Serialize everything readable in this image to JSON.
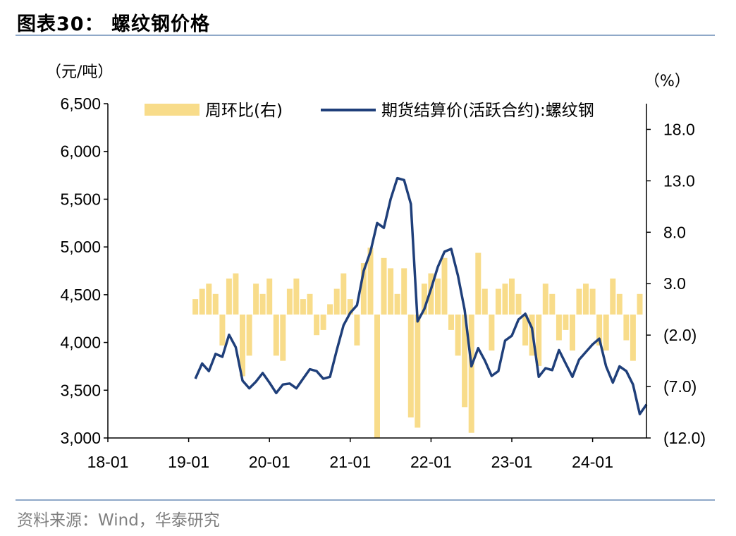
{
  "header": {
    "title": "图表30：  螺纹钢价格"
  },
  "footer": {
    "source": "资料来源：Wind，华泰研究"
  },
  "colors": {
    "rule": "#8fa8c8",
    "line": "#1f3f7a",
    "bar": "#f8dc8a",
    "source": "#7f7f7f"
  },
  "chart_data": {
    "type": "line",
    "title": "",
    "y_left_unit": "（元/吨）",
    "y_right_unit": "（%）",
    "ylim_left": [
      3000,
      6500
    ],
    "ylim_right": [
      -12.0,
      20.5
    ],
    "y_left_ticks": [
      "3,000",
      "3,500",
      "4,000",
      "4,500",
      "5,000",
      "5,500",
      "6,000",
      "6,500"
    ],
    "y_right_ticks": [
      "(12.0)",
      "(7.0)",
      "(2.0)",
      "3.0",
      "8.0",
      "13.0",
      "18.0"
    ],
    "x_ticks": [
      "18-01",
      "19-01",
      "20-01",
      "21-01",
      "22-01",
      "23-01",
      "24-01"
    ],
    "xlim": [
      "2018-01",
      "2024-09"
    ],
    "legend_position": "top",
    "series": [
      {
        "name": "周环比(右)",
        "kind": "bar",
        "color": "#f8dc8a",
        "axis": "right",
        "x": [
          "2019-02",
          "2019-03",
          "2019-04",
          "2019-05",
          "2019-06",
          "2019-07",
          "2019-08",
          "2019-09",
          "2019-10",
          "2019-11",
          "2019-12",
          "2020-01",
          "2020-02",
          "2020-03",
          "2020-04",
          "2020-05",
          "2020-06",
          "2020-07",
          "2020-08",
          "2020-09",
          "2020-10",
          "2020-11",
          "2020-12",
          "2021-01",
          "2021-02",
          "2021-03",
          "2021-04",
          "2021-05",
          "2021-06",
          "2021-07",
          "2021-08",
          "2021-09",
          "2021-10",
          "2021-11",
          "2021-12",
          "2022-01",
          "2022-02",
          "2022-03",
          "2022-04",
          "2022-05",
          "2022-06",
          "2022-07",
          "2022-08",
          "2022-09",
          "2022-10",
          "2022-11",
          "2022-12",
          "2023-01",
          "2023-02",
          "2023-03",
          "2023-04",
          "2023-05",
          "2023-06",
          "2023-07",
          "2023-08",
          "2023-09",
          "2023-10",
          "2023-11",
          "2023-12",
          "2024-01",
          "2024-02",
          "2024-03",
          "2024-04",
          "2024-05",
          "2024-06",
          "2024-07",
          "2024-08"
        ],
        "values": [
          1.5,
          2.5,
          3.0,
          2.0,
          -3.0,
          3.5,
          4.0,
          -6.0,
          -4.0,
          3.0,
          2.0,
          3.5,
          -4.0,
          -4.5,
          2.5,
          3.5,
          1.5,
          2.0,
          -2.0,
          -1.5,
          1.0,
          2.5,
          4.0,
          1.5,
          -3.0,
          5.0,
          6.5,
          -12.0,
          5.5,
          4.5,
          2.0,
          4.5,
          -10.0,
          -11.0,
          3.0,
          4.0,
          3.5,
          5.5,
          -1.5,
          -4.0,
          -9.0,
          -11.5,
          6.0,
          2.5,
          -3.5,
          2.5,
          3.0,
          3.5,
          2.0,
          -3.0,
          -4.0,
          -5.0,
          3.0,
          2.0,
          -2.5,
          -1.5,
          -3.5,
          2.5,
          3.0,
          2.5,
          -3.0,
          -3.5,
          3.5,
          2.0,
          -2.5,
          -4.5,
          2.0
        ]
      },
      {
        "name": "期货结算价(活跃合约):螺纹钢",
        "kind": "line",
        "color": "#1f3f7a",
        "axis": "left",
        "x": [
          "2019-02",
          "2019-03",
          "2019-04",
          "2019-05",
          "2019-06",
          "2019-07",
          "2019-08",
          "2019-09",
          "2019-10",
          "2019-11",
          "2019-12",
          "2020-01",
          "2020-02",
          "2020-03",
          "2020-04",
          "2020-05",
          "2020-06",
          "2020-07",
          "2020-08",
          "2020-09",
          "2020-10",
          "2020-11",
          "2020-12",
          "2021-01",
          "2021-02",
          "2021-03",
          "2021-04",
          "2021-05",
          "2021-06",
          "2021-07",
          "2021-08",
          "2021-09",
          "2021-10",
          "2021-11",
          "2021-12",
          "2022-01",
          "2022-02",
          "2022-03",
          "2022-04",
          "2022-05",
          "2022-06",
          "2022-07",
          "2022-08",
          "2022-09",
          "2022-10",
          "2022-11",
          "2022-12",
          "2023-01",
          "2023-02",
          "2023-03",
          "2023-04",
          "2023-05",
          "2023-06",
          "2023-07",
          "2023-08",
          "2023-09",
          "2023-10",
          "2023-11",
          "2023-12",
          "2024-01",
          "2024-02",
          "2024-03",
          "2024-04",
          "2024-05",
          "2024-06",
          "2024-07",
          "2024-08",
          "2024-09"
        ],
        "values": [
          3620,
          3780,
          3700,
          3880,
          3850,
          4080,
          3950,
          3600,
          3520,
          3590,
          3680,
          3580,
          3470,
          3560,
          3570,
          3520,
          3620,
          3720,
          3700,
          3620,
          3640,
          3920,
          4180,
          4310,
          4390,
          4750,
          4950,
          5250,
          5200,
          5500,
          5720,
          5700,
          5450,
          4220,
          4350,
          4560,
          4790,
          4950,
          4980,
          4700,
          4340,
          3750,
          3940,
          3810,
          3650,
          3700,
          4020,
          4070,
          4240,
          4300,
          4150,
          3640,
          3730,
          3710,
          3920,
          3780,
          3640,
          3820,
          3900,
          3980,
          4040,
          3750,
          3580,
          3750,
          3700,
          3560,
          3250,
          3350
        ]
      }
    ]
  }
}
